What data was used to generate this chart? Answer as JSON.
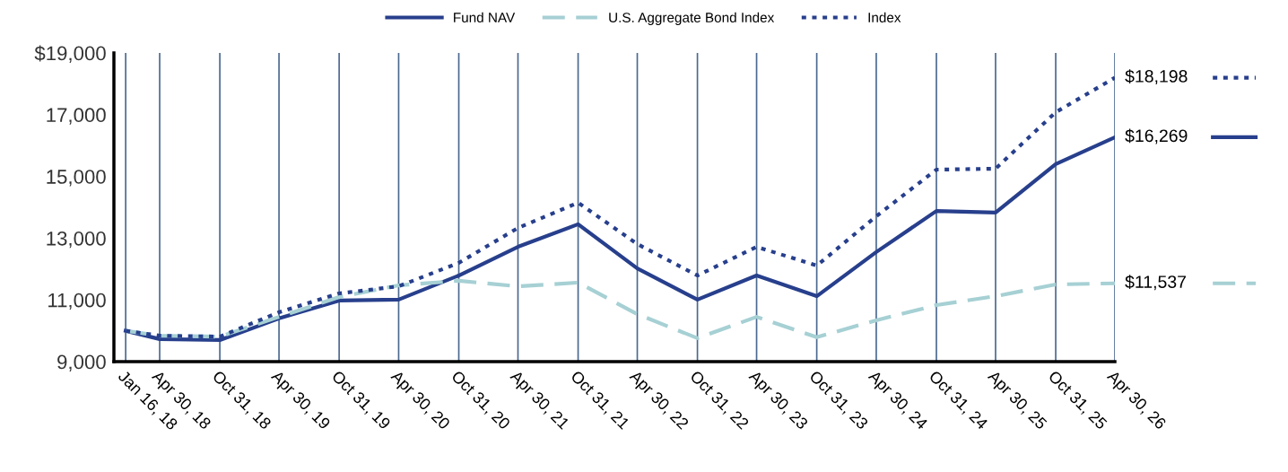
{
  "chart_data": {
    "type": "line",
    "x": [
      "2018-01-16",
      "2018-04-30",
      "2018-10-31",
      "2019-04-30",
      "2019-10-31",
      "2020-04-30",
      "2020-10-31",
      "2021-04-30",
      "2021-10-31",
      "2022-04-30",
      "2022-10-31",
      "2023-04-30",
      "2023-10-31",
      "2024-04-30",
      "2024-10-31",
      "2025-04-30",
      "2025-10-31",
      "2026-04-30"
    ],
    "series": [
      {
        "name": "Fund NAV",
        "color": "#273f8c",
        "line_style": "solid",
        "values": [
          10000,
          9730,
          9700,
          10400,
          10980,
          11010,
          11790,
          12720,
          13450,
          12020,
          11010,
          11790,
          11120,
          12550,
          13880,
          13830,
          15400,
          16269
        ]
      },
      {
        "name": "U.S. Aggregate Bond Index",
        "color": "#a6d0d4",
        "line_style": "dashed",
        "values": [
          10000,
          9840,
          9810,
          10450,
          11090,
          11470,
          11620,
          11440,
          11560,
          10540,
          9760,
          10450,
          9790,
          10340,
          10830,
          11120,
          11500,
          11537
        ]
      },
      {
        "name": "Index",
        "color": "#273f8c",
        "line_style": "dotted",
        "values": [
          10000,
          9840,
          9810,
          10600,
          11210,
          11440,
          12200,
          13330,
          14150,
          12810,
          11790,
          12720,
          12110,
          13710,
          15220,
          15250,
          17080,
          18198
        ]
      }
    ],
    "xlim": [
      "2017-12-11",
      "2026-04-30"
    ],
    "xticks": [
      {
        "value": "2018-01-16",
        "label": "Jan 16, 18"
      },
      {
        "value": "2018-04-30",
        "label": "Apr 30, 18"
      },
      {
        "value": "2018-10-31",
        "label": "Oct 31, 18"
      },
      {
        "value": "2019-04-30",
        "label": "Apr 30, 19"
      },
      {
        "value": "2019-10-31",
        "label": "Oct 31, 19"
      },
      {
        "value": "2020-04-30",
        "label": "Apr 30, 20"
      },
      {
        "value": "2020-10-31",
        "label": "Oct 31, 20"
      },
      {
        "value": "2021-04-30",
        "label": "Apr 30, 21"
      },
      {
        "value": "2021-10-31",
        "label": "Oct 31, 21"
      },
      {
        "value": "2022-04-30",
        "label": "Apr 30, 22"
      },
      {
        "value": "2022-10-31",
        "label": "Oct 31, 22"
      },
      {
        "value": "2023-04-30",
        "label": "Apr 30, 23"
      },
      {
        "value": "2023-10-31",
        "label": "Oct 31, 23"
      },
      {
        "value": "2024-04-30",
        "label": "Apr 30, 24"
      },
      {
        "value": "2024-10-31",
        "label": "Oct 31, 24"
      },
      {
        "value": "2025-04-30",
        "label": "Apr 30, 25"
      },
      {
        "value": "2025-10-31",
        "label": "Oct 31, 25"
      },
      {
        "value": "2026-04-30",
        "label": "Apr 30, 26"
      }
    ],
    "ylim": [
      9000,
      19000
    ],
    "yticks": [
      {
        "value": 9000,
        "label": "9,000"
      },
      {
        "value": 11000,
        "label": "11,000"
      },
      {
        "value": 13000,
        "label": "13,000"
      },
      {
        "value": 15000,
        "label": "15,000"
      },
      {
        "value": 17000,
        "label": "17,000"
      },
      {
        "value": 19000,
        "label": "$19,000"
      }
    ],
    "grid": "x",
    "legend": "top",
    "marker": "none",
    "annotations": [
      {
        "text": "$16,269",
        "x": "2026-04-30",
        "y": 16269
      },
      {
        "text": "$11,537",
        "x": "2026-04-30",
        "y": 11537
      },
      {
        "text": "$18,198",
        "x": "2026-04-30",
        "y": 18198
      }
    ]
  }
}
